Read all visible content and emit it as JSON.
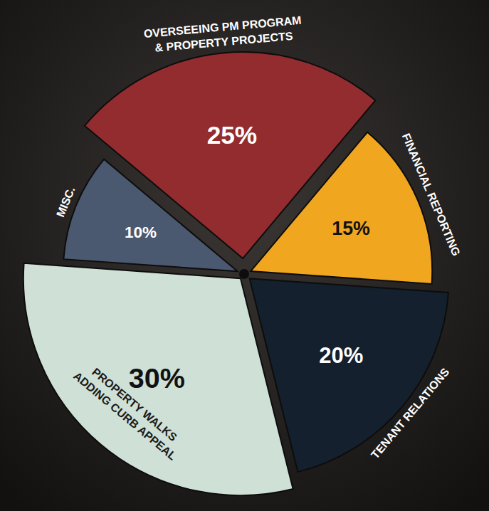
{
  "chart_data": {
    "type": "pie",
    "categories": [
      "OVERSEEING PM PROGRAM & PROPERTY PROJECTS",
      "FINANCIAL REPORTING",
      "TENANT RELATIONS",
      "PROPERTY WALKS ADDING CURB APPEAL",
      "MISC."
    ],
    "values": [
      25,
      15,
      20,
      30,
      10
    ],
    "value_labels": [
      "25%",
      "15%",
      "20%",
      "30%",
      "10%"
    ],
    "colors": [
      "#922c2f",
      "#f1a620",
      "#14202d",
      "#cfe0d6",
      "#4a5870"
    ],
    "data_labels": true
  }
}
